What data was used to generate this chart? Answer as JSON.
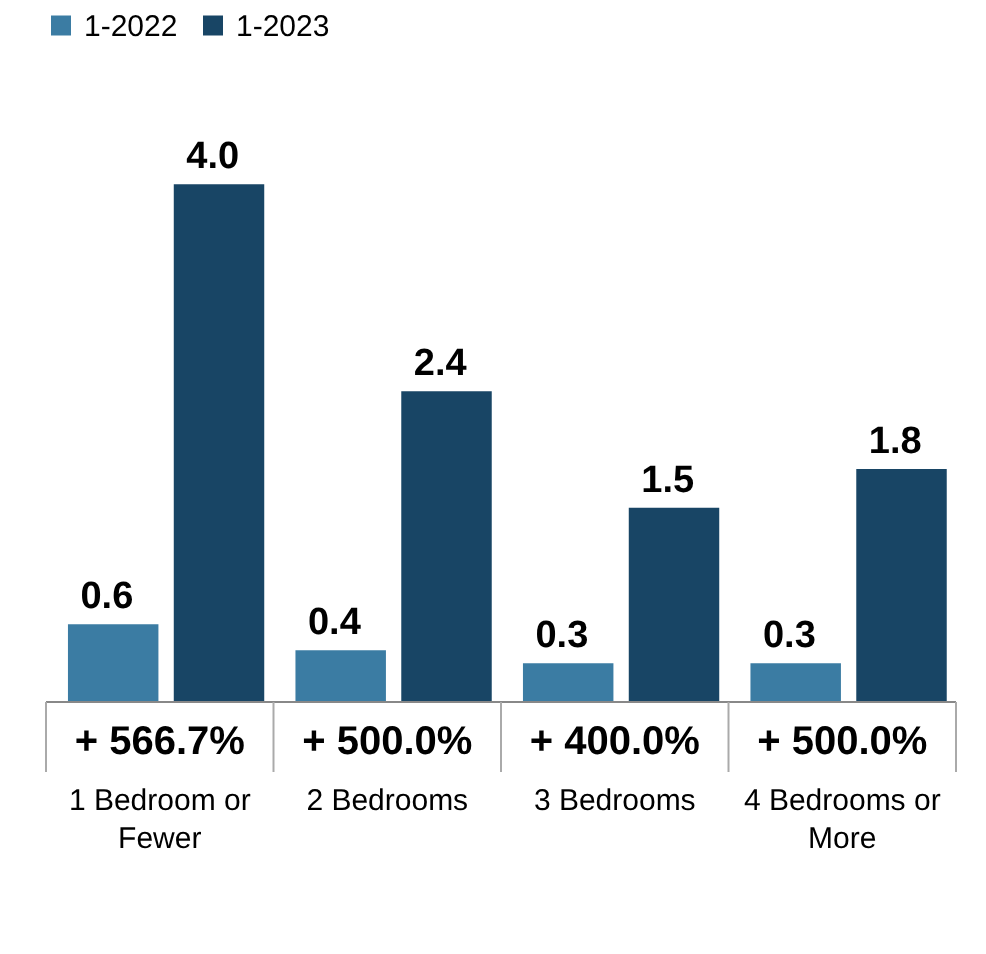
{
  "chart_data": {
    "type": "bar",
    "categories": [
      "1 Bedroom or Fewer",
      "2 Bedrooms",
      "3 Bedrooms",
      "4 Bedrooms or More"
    ],
    "series": [
      {
        "name": "1-2022",
        "color": "#3b7ca3",
        "values": [
          0.6,
          0.4,
          0.3,
          0.3
        ],
        "value_labels": [
          "0.6",
          "0.4",
          "0.3",
          "0.3"
        ]
      },
      {
        "name": "1-2023",
        "color": "#184565",
        "values": [
          4.0,
          2.4,
          1.5,
          1.8
        ],
        "value_labels": [
          "4.0",
          "2.4",
          "1.5",
          "1.8"
        ]
      }
    ],
    "legend": "top left",
    "annotations": [
      "+ 566.7%",
      "+ 500.0%",
      "+ 400.0%",
      "+ 500.0%"
    ]
  }
}
